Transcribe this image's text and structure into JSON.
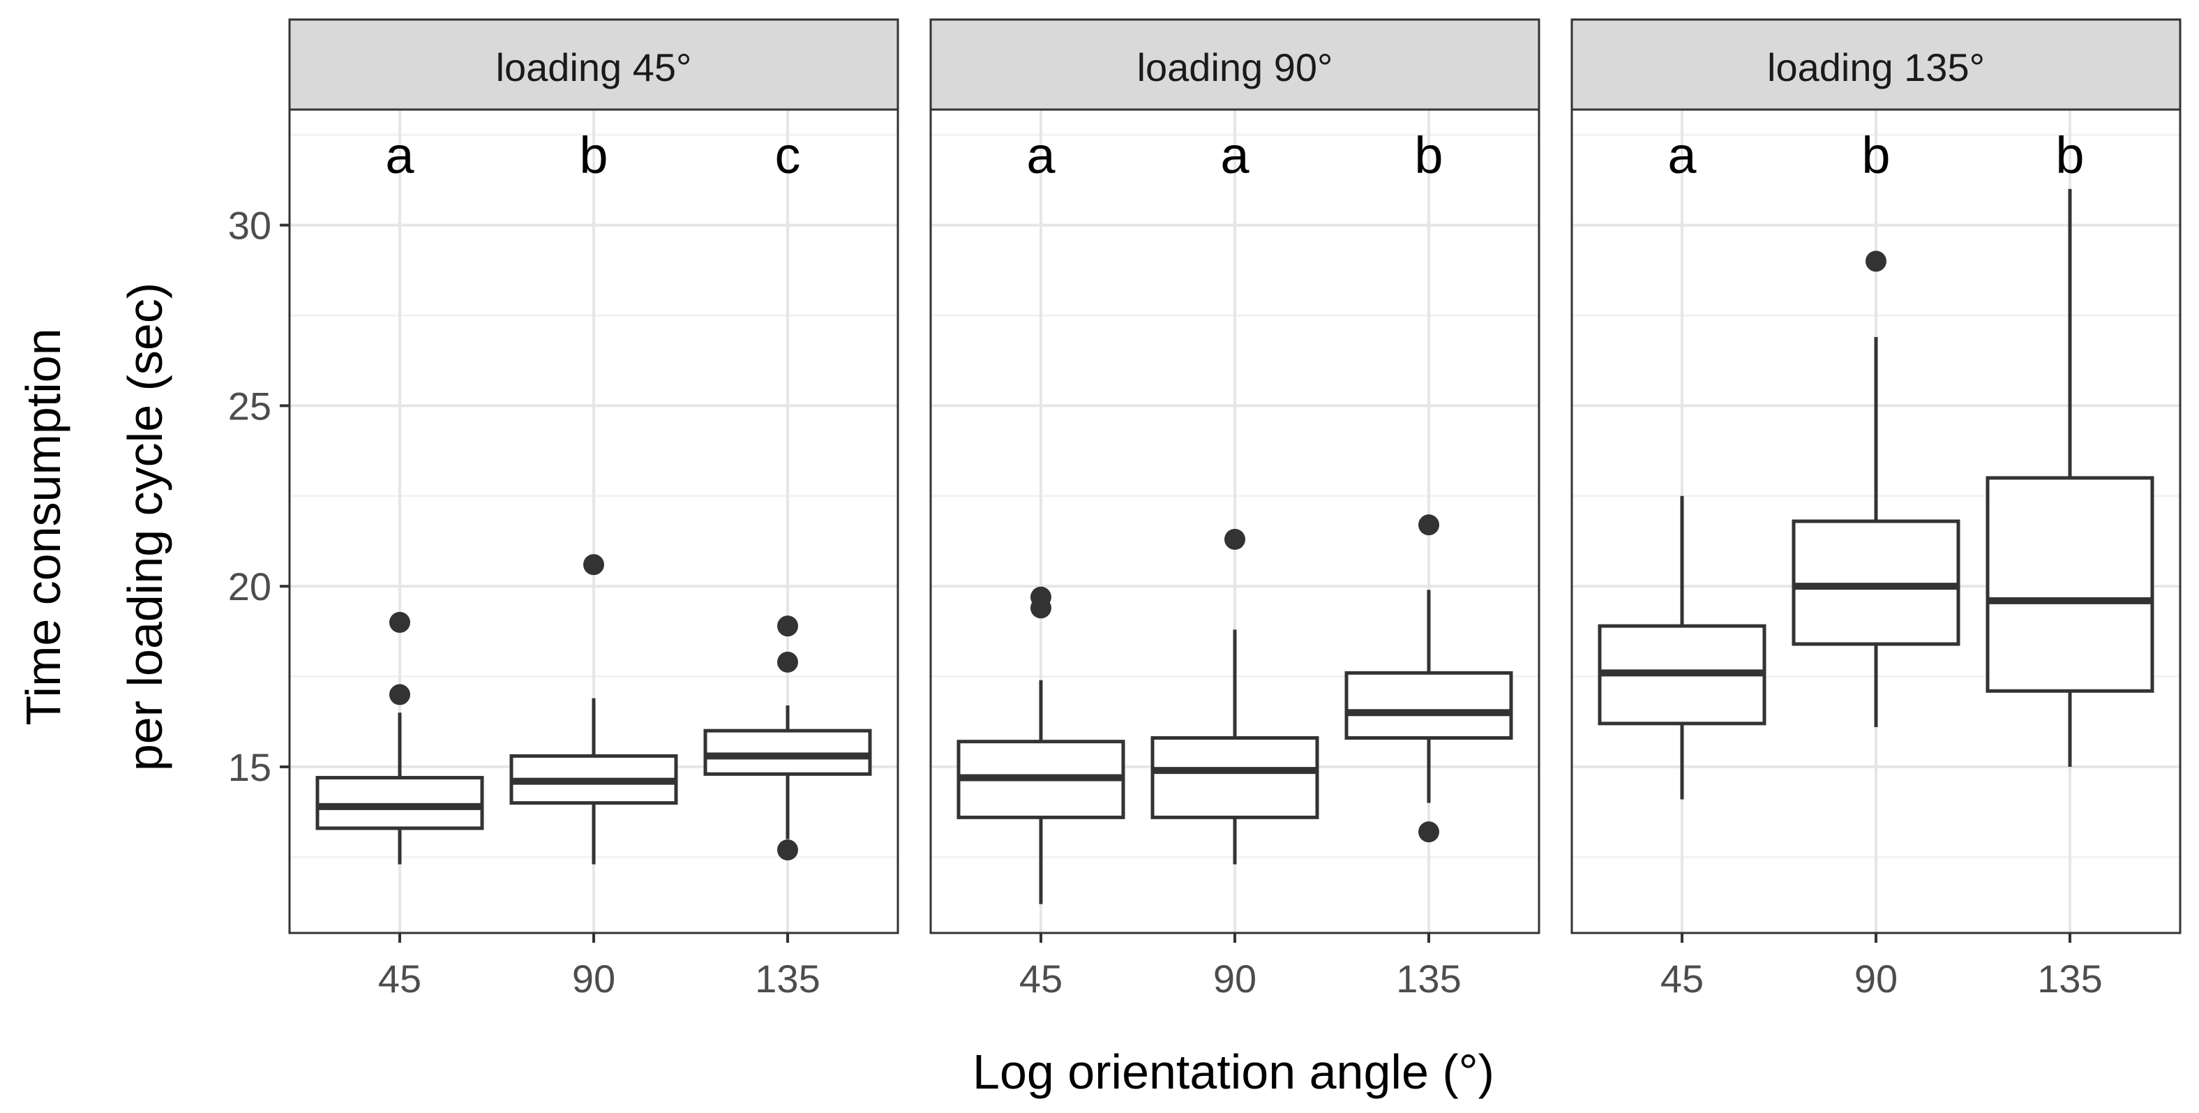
{
  "chart_data": {
    "type": "boxplot",
    "xlabel": "Log orientation angle (°)",
    "ylabel_lines": [
      "Time consumption",
      "per loading cycle (sec)"
    ],
    "ylim": [
      10.4,
      33.2
    ],
    "yticks": [
      15,
      20,
      25,
      30
    ],
    "minor_yticks": [
      12.5,
      17.5,
      22.5,
      27.5,
      32.5
    ],
    "categories": [
      "45",
      "90",
      "135"
    ],
    "colors": {
      "box_stroke": "#333333",
      "strip_fill": "#d9d9d9",
      "panel_border": "#333333",
      "grid_major": "#e6e6e6",
      "grid_minor": "#f2f2f2",
      "outlier": "#333333"
    },
    "panels": [
      {
        "strip": "loading 45°",
        "groups": [
          {
            "x": "45",
            "letter": "a",
            "whisker_low": 12.3,
            "q1": 13.3,
            "median": 13.9,
            "q3": 14.7,
            "whisker_high": 16.5,
            "outliers": [
              17.0,
              19.0
            ]
          },
          {
            "x": "90",
            "letter": "b",
            "whisker_low": 12.3,
            "q1": 14.0,
            "median": 14.6,
            "q3": 15.3,
            "whisker_high": 16.9,
            "outliers": [
              20.6
            ]
          },
          {
            "x": "135",
            "letter": "c",
            "whisker_low": 13.0,
            "q1": 14.8,
            "median": 15.3,
            "q3": 16.0,
            "whisker_high": 16.7,
            "outliers": [
              12.7,
              17.9,
              18.9
            ]
          }
        ]
      },
      {
        "strip": "loading 90°",
        "groups": [
          {
            "x": "45",
            "letter": "a",
            "whisker_low": 11.2,
            "q1": 13.6,
            "median": 14.7,
            "q3": 15.7,
            "whisker_high": 17.4,
            "outliers": [
              19.4,
              19.7
            ]
          },
          {
            "x": "90",
            "letter": "a",
            "whisker_low": 12.3,
            "q1": 13.6,
            "median": 14.9,
            "q3": 15.8,
            "whisker_high": 18.8,
            "outliers": [
              21.3
            ]
          },
          {
            "x": "135",
            "letter": "b",
            "whisker_low": 14.0,
            "q1": 15.8,
            "median": 16.5,
            "q3": 17.6,
            "whisker_high": 19.9,
            "outliers": [
              13.2,
              21.7
            ]
          }
        ]
      },
      {
        "strip": "loading 135°",
        "groups": [
          {
            "x": "45",
            "letter": "a",
            "whisker_low": 14.1,
            "q1": 16.2,
            "median": 17.6,
            "q3": 18.9,
            "whisker_high": 22.5,
            "outliers": []
          },
          {
            "x": "90",
            "letter": "b",
            "whisker_low": 16.1,
            "q1": 18.4,
            "median": 20.0,
            "q3": 21.8,
            "whisker_high": 26.9,
            "outliers": [
              29.0
            ]
          },
          {
            "x": "135",
            "letter": "b",
            "whisker_low": 15.0,
            "q1": 17.1,
            "median": 19.6,
            "q3": 23.0,
            "whisker_high": 31.0,
            "outliers": []
          }
        ]
      }
    ]
  }
}
